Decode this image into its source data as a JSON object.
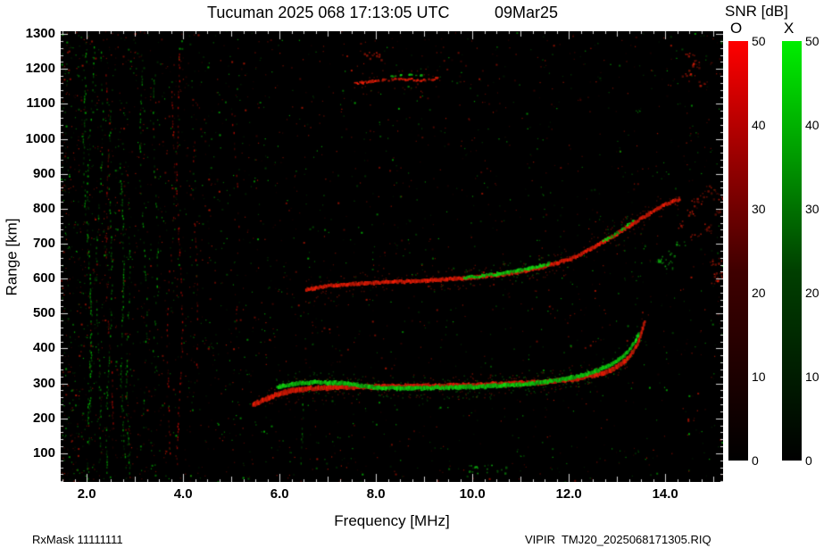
{
  "title": {
    "main": "Tucuman 2025 068 17:13:05 UTC",
    "date": "09Mar25"
  },
  "axes": {
    "xlabel": "Frequency [MHz]",
    "ylabel": "Range [km]"
  },
  "footer": {
    "left": "RxMask 11111111",
    "right": "VIPIR  TMJ20_2025068171305.RIQ"
  },
  "colorbar": {
    "title": "SNR [dB]",
    "o_label": "O",
    "x_label": "X",
    "max": 50,
    "ticks": [
      0,
      10,
      20,
      30,
      40,
      50
    ],
    "o_gradient": [
      "#000000",
      "#3f0000",
      "#990000",
      "#ff0000"
    ],
    "x_gradient": [
      "#000000",
      "#003f00",
      "#009900",
      "#00ee00"
    ]
  },
  "chart_data": {
    "type": "heatmap",
    "title": "Tucuman 2025 068 17:13:05 UTC",
    "xlabel": "Frequency [MHz]",
    "ylabel": "Range [km]",
    "xlim": [
      1.46,
      15.2
    ],
    "ylim": [
      18,
      1308
    ],
    "x_major_ticks": [
      2,
      4,
      6,
      8,
      10,
      12,
      14
    ],
    "x_tick_labels": [
      "2.0",
      "4.0",
      "6.0",
      "8.0",
      "10.0",
      "12.0",
      "14.0"
    ],
    "y_major_ticks": [
      100,
      200,
      300,
      400,
      500,
      600,
      700,
      800,
      900,
      1000,
      1100,
      1200,
      1300
    ],
    "snr_range": [
      0,
      50
    ],
    "o_color": "#ff2008",
    "x_color": "#12e412",
    "background": "#000000",
    "series": [
      {
        "name": "second-hop-O",
        "mode": "O",
        "style": "line",
        "width": 3,
        "points": [
          [
            6.55,
            568
          ],
          [
            6.9,
            577
          ],
          [
            7.3,
            582
          ],
          [
            7.7,
            586
          ],
          [
            8.1,
            589
          ],
          [
            8.5,
            591
          ],
          [
            9.0,
            594
          ],
          [
            9.5,
            598
          ],
          [
            10.0,
            603
          ],
          [
            10.4,
            608
          ],
          [
            10.8,
            615
          ],
          [
            11.1,
            622
          ],
          [
            11.4,
            631
          ],
          [
            11.7,
            642
          ],
          [
            12.0,
            655
          ],
          [
            12.25,
            670
          ],
          [
            12.5,
            688
          ],
          [
            12.75,
            708
          ],
          [
            13.0,
            728
          ],
          [
            13.25,
            750
          ],
          [
            13.5,
            772
          ],
          [
            13.75,
            792
          ],
          [
            14.0,
            812
          ],
          [
            14.3,
            828
          ]
        ]
      },
      {
        "name": "second-hop-X-inner",
        "mode": "X",
        "style": "line",
        "width": 2.6,
        "density": 0.8,
        "points": [
          [
            9.8,
            602
          ],
          [
            10.1,
            606
          ],
          [
            10.4,
            611
          ],
          [
            10.7,
            617
          ],
          [
            11.0,
            624
          ],
          [
            11.3,
            633
          ],
          [
            11.6,
            643
          ]
        ]
      },
      {
        "name": "second-hop-X-outer",
        "mode": "X",
        "style": "line",
        "width": 2.2,
        "density": 0.5,
        "points": [
          [
            12.7,
            705
          ],
          [
            12.95,
            726
          ],
          [
            13.15,
            745
          ],
          [
            13.35,
            765
          ]
        ]
      },
      {
        "name": "f-trace-O",
        "mode": "O",
        "style": "line",
        "width": 4.2,
        "points": [
          [
            5.45,
            238
          ],
          [
            5.6,
            248
          ],
          [
            5.75,
            257
          ],
          [
            5.9,
            265
          ],
          [
            6.1,
            274
          ],
          [
            6.3,
            280
          ],
          [
            6.6,
            285
          ],
          [
            7.0,
            288
          ],
          [
            7.5,
            290
          ],
          [
            8.0,
            291
          ],
          [
            8.5,
            291
          ],
          [
            9.0,
            292
          ],
          [
            9.5,
            293
          ],
          [
            10.0,
            295
          ],
          [
            10.5,
            297
          ],
          [
            11.0,
            300
          ],
          [
            11.4,
            303
          ],
          [
            11.8,
            308
          ],
          [
            12.1,
            313
          ],
          [
            12.4,
            320
          ],
          [
            12.7,
            330
          ],
          [
            12.9,
            340
          ],
          [
            13.05,
            352
          ],
          [
            13.2,
            368
          ],
          [
            13.3,
            385
          ],
          [
            13.38,
            403
          ],
          [
            13.44,
            420
          ],
          [
            13.5,
            442
          ],
          [
            13.54,
            462
          ],
          [
            13.58,
            482
          ]
        ]
      },
      {
        "name": "f-trace-X",
        "mode": "X",
        "style": "line",
        "width": 3.4,
        "points": [
          [
            5.95,
            290
          ],
          [
            6.2,
            296
          ],
          [
            6.5,
            302
          ],
          [
            6.8,
            303
          ],
          [
            7.2,
            301
          ],
          [
            7.6,
            296
          ],
          [
            8.0,
            288
          ],
          [
            8.5,
            286
          ],
          [
            9.0,
            287
          ],
          [
            9.5,
            288
          ],
          [
            10.0,
            290
          ],
          [
            10.5,
            293
          ],
          [
            11.0,
            297
          ],
          [
            11.4,
            302
          ],
          [
            11.8,
            310
          ],
          [
            12.1,
            318
          ],
          [
            12.4,
            328
          ],
          [
            12.65,
            340
          ],
          [
            12.85,
            352
          ],
          [
            13.0,
            364
          ],
          [
            13.15,
            379
          ],
          [
            13.25,
            395
          ],
          [
            13.33,
            411
          ],
          [
            13.4,
            428
          ],
          [
            13.46,
            448
          ]
        ]
      },
      {
        "name": "spread-echo-top-O",
        "mode": "O",
        "style": "line",
        "width": 2,
        "density": 0.55,
        "points": [
          [
            7.55,
            1158
          ],
          [
            7.8,
            1163
          ],
          [
            8.1,
            1168
          ],
          [
            8.45,
            1170
          ],
          [
            8.75,
            1169
          ],
          [
            9.05,
            1167
          ],
          [
            9.3,
            1173
          ]
        ]
      },
      {
        "name": "spread-echo-top-X",
        "mode": "X",
        "style": "line",
        "width": 1.8,
        "density": 0.3,
        "points": [
          [
            8.3,
            1180
          ],
          [
            8.65,
            1185
          ],
          [
            8.95,
            1181
          ]
        ]
      },
      {
        "name": "right-scatter-O",
        "mode": "O",
        "style": "scatter",
        "points": [
          [
            14.35,
            755
          ],
          [
            14.5,
            792
          ],
          [
            14.65,
            820
          ],
          [
            14.8,
            845
          ],
          [
            14.95,
            856
          ],
          [
            15.08,
            836
          ],
          [
            15.12,
            790
          ],
          [
            14.9,
            748
          ],
          [
            14.62,
            722
          ],
          [
            15.0,
            588
          ],
          [
            15.1,
            616
          ],
          [
            15.05,
            650
          ],
          [
            14.42,
            1192
          ],
          [
            14.6,
            1216
          ],
          [
            14.76,
            1162
          ],
          [
            14.52,
            1238
          ],
          [
            7.85,
            1243
          ],
          [
            8.0,
            1239
          ]
        ]
      },
      {
        "name": "right-scatter-X",
        "mode": "X",
        "style": "scatter",
        "points": [
          [
            13.9,
            655
          ],
          [
            14.12,
            676
          ],
          [
            14.3,
            700
          ],
          [
            14.05,
            640
          ],
          [
            10.0,
            55
          ],
          [
            10.3,
            58
          ],
          [
            10.6,
            54
          ]
        ]
      }
    ],
    "noise": {
      "seed": 20250309,
      "speckle_count": 3000,
      "green_streaks": [
        {
          "f": 1.98,
          "km_min": 20,
          "km_max": 1300,
          "d": 0.5
        },
        {
          "f": 2.12,
          "km_min": 120,
          "km_max": 1280,
          "d": 0.45
        },
        {
          "f": 2.3,
          "km_min": 60,
          "km_max": 1250,
          "d": 0.4
        },
        {
          "f": 2.52,
          "km_min": 30,
          "km_max": 1120,
          "d": 0.5
        },
        {
          "f": 2.72,
          "km_min": 30,
          "km_max": 920,
          "d": 0.55
        },
        {
          "f": 2.9,
          "km_min": 40,
          "km_max": 720,
          "d": 0.5
        },
        {
          "f": 3.12,
          "km_min": 200,
          "km_max": 1250,
          "d": 0.35
        },
        {
          "f": 3.35,
          "km_min": 380,
          "km_max": 1200,
          "d": 0.28
        },
        {
          "f": 6.4,
          "km_min": 60,
          "km_max": 250,
          "d": 0.45
        }
      ],
      "red_streaks": [
        {
          "f": 2.42,
          "km_min": 100,
          "km_max": 1200,
          "d": 0.3
        },
        {
          "f": 3.7,
          "km_min": 100,
          "km_max": 1160,
          "d": 0.45
        },
        {
          "f": 3.85,
          "km_min": 60,
          "km_max": 1260,
          "d": 0.5
        },
        {
          "f": 4.32,
          "km_min": 300,
          "km_max": 1100,
          "d": 0.22
        },
        {
          "f": 5.05,
          "km_min": 420,
          "km_max": 1150,
          "d": 0.18
        }
      ]
    }
  }
}
